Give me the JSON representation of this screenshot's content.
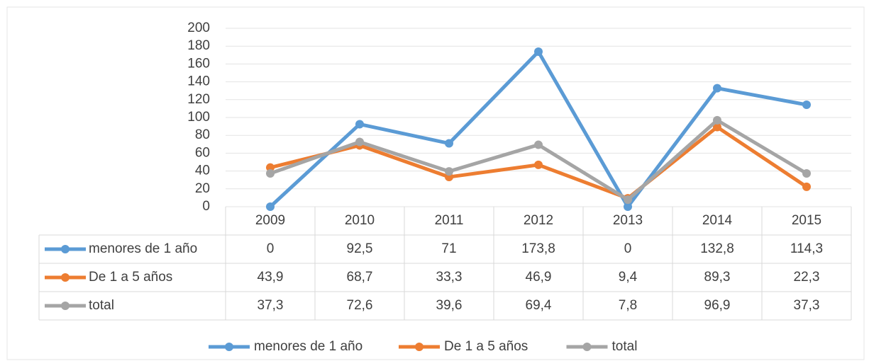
{
  "chart_data": {
    "type": "line",
    "categories": [
      "2009",
      "2010",
      "2011",
      "2012",
      "2013",
      "2014",
      "2015"
    ],
    "series": [
      {
        "name": "menores de 1 año",
        "color": "#5b9bd5",
        "values": [
          0,
          92.5,
          71,
          173.8,
          0,
          132.8,
          114.3
        ],
        "value_labels": [
          "0",
          "92,5",
          "71",
          "173,8",
          "0",
          "132,8",
          "114,3"
        ]
      },
      {
        "name": "De 1 a 5 años",
        "color": "#ed7d31",
        "values": [
          43.9,
          68.7,
          33.3,
          46.9,
          9.4,
          89.3,
          22.3
        ],
        "value_labels": [
          "43,9",
          "68,7",
          "33,3",
          "46,9",
          "9,4",
          "89,3",
          "22,3"
        ]
      },
      {
        "name": "total",
        "color": "#a5a5a5",
        "values": [
          37.3,
          72.6,
          39.6,
          69.4,
          7.8,
          96.9,
          37.3
        ],
        "value_labels": [
          "37,3",
          "72,6",
          "39,6",
          "69,4",
          "7,8",
          "96,9",
          "37,3"
        ]
      }
    ],
    "ylim": [
      0,
      200
    ],
    "yticks": [
      0,
      20,
      40,
      60,
      80,
      100,
      120,
      140,
      160,
      180,
      200
    ],
    "grid": true,
    "legend": "bottom"
  }
}
